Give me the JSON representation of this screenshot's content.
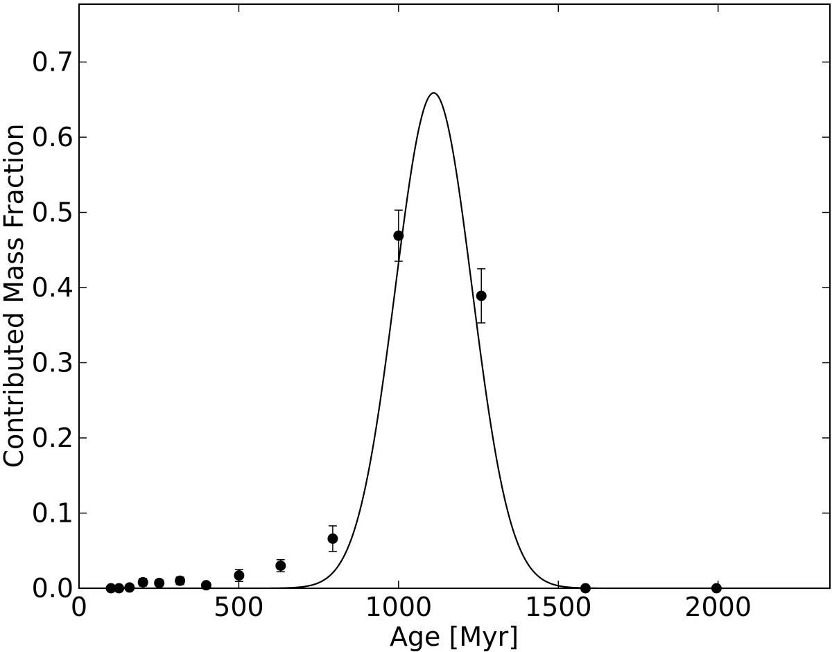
{
  "chart_data": {
    "type": "scatter",
    "title": "",
    "xlabel": "Age [Myr]",
    "ylabel": "Contributed Mass Fraction",
    "xlim": [
      0,
      2350
    ],
    "ylim": [
      0,
      0.777
    ],
    "xticks": [
      0,
      500,
      1000,
      1500,
      2000
    ],
    "xtick_labels": [
      "0",
      "500",
      "1000",
      "1500",
      "2000"
    ],
    "yticks": [
      0.0,
      0.1,
      0.2,
      0.3,
      0.4,
      0.5,
      0.6,
      0.7
    ],
    "ytick_labels": [
      "0.0",
      "0.1",
      "0.2",
      "0.3",
      "0.4",
      "0.5",
      "0.6",
      "0.7"
    ],
    "grid": false,
    "points": {
      "x": [
        100,
        125,
        158,
        200,
        251,
        316,
        398,
        501,
        631,
        794,
        1000,
        1259,
        1585,
        1995
      ],
      "y": [
        0.0,
        0.0,
        0.001,
        0.008,
        0.007,
        0.01,
        0.004,
        0.017,
        0.03,
        0.066,
        0.469,
        0.389,
        0.0,
        0.0
      ],
      "err": [
        0.002,
        0.002,
        0.002,
        0.005,
        0.004,
        0.005,
        0.003,
        0.008,
        0.008,
        0.017,
        0.034,
        0.036,
        0.002,
        0.002
      ]
    },
    "fit": {
      "model": "gaussian",
      "amplitude": 0.659,
      "center": 1110,
      "sigma": 120
    }
  }
}
